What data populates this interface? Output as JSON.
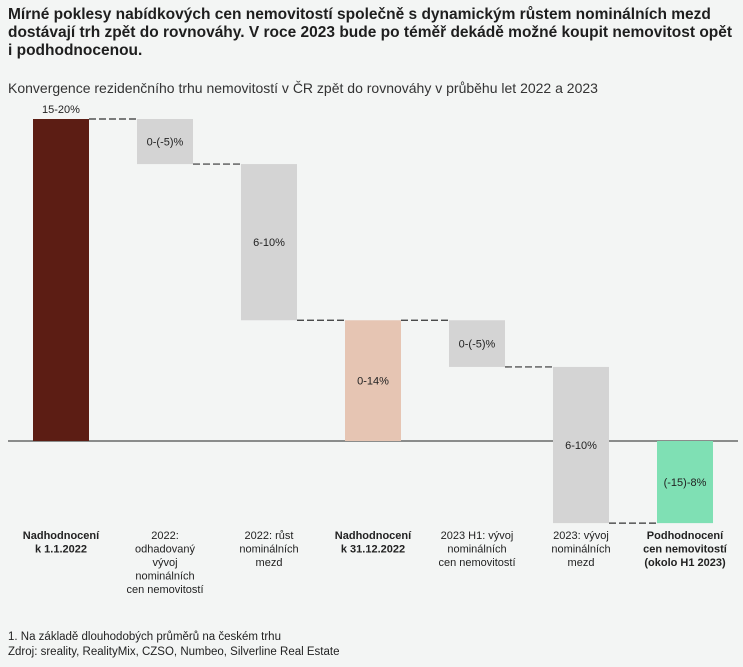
{
  "header": {
    "headline": "Mírné poklesy nabídkových cen nemovitostí společně s dynamickým růstem nominálních mezd dostávají trh zpět do rovnováhy. V roce 2023 bude po téměř dekádě možné koupit nemovitost opět i podhodnocenou.",
    "subtitle": "Konvergence rezidenčního trhu nemovitostí v ČR zpět do rovnováhy v průběhu let 2022 a 2023"
  },
  "chart_data": {
    "type": "bar",
    "subtype": "waterfall",
    "title": "Konvergence rezidenčního trhu nemovitostí v ČR zpět do rovnováhy v průběhu let 2022 a 2023",
    "categories": [
      [
        "Nadhodnocení",
        "k 1.1.2022"
      ],
      [
        "2022:",
        "odhadovaný",
        "vývoj",
        "nominálních",
        "cen nemovitostí"
      ],
      [
        "2022: růst",
        "nominálních",
        "mezd"
      ],
      [
        "Nadhodnocení",
        "k 31.12.2022"
      ],
      [
        "2023 H1: vývoj",
        "nominálních",
        "cen nemovitostí"
      ],
      [
        "2023: vývoj",
        "nominálních",
        "mezd"
      ],
      [
        "Podhodnocení",
        "cen nemovitostí",
        "(okolo H1 2023)"
      ]
    ],
    "category_bold": [
      true,
      false,
      false,
      true,
      false,
      false,
      true
    ],
    "bars": [
      {
        "kind": "total",
        "start": 0,
        "end": 20,
        "label": "15-20%",
        "color": "#5c1d14",
        "label_pos": "above"
      },
      {
        "kind": "step",
        "start": 20,
        "end": 17.2,
        "label": "0-(-5)%",
        "color": "#d4d4d4",
        "label_pos": "inside"
      },
      {
        "kind": "step",
        "start": 17.2,
        "end": 7.5,
        "label": "6-10%",
        "color": "#d4d4d4",
        "label_pos": "inside"
      },
      {
        "kind": "total",
        "start": 0,
        "end": 7.5,
        "label": "0-14%",
        "color": "#e6c5b3",
        "label_pos": "inside"
      },
      {
        "kind": "step",
        "start": 7.5,
        "end": 4.6,
        "label": "0-(-5)%",
        "color": "#d4d4d4",
        "label_pos": "inside"
      },
      {
        "kind": "step",
        "start": 4.6,
        "end": -5.1,
        "label": "6-10%",
        "color": "#d4d4d4",
        "label_pos": "inside"
      },
      {
        "kind": "total",
        "start": 0,
        "end": -5.1,
        "label": "(-15)-8%",
        "color": "#7fe0b4",
        "label_pos": "inside"
      }
    ],
    "ylim": [
      -5.1,
      20
    ],
    "zero_line": true,
    "connectors": "dashed",
    "grid": false,
    "legend": "none"
  },
  "footnotes": {
    "note1": "1. Na základě dlouhodobých průměrů na českém trhu",
    "note2": "Zdroj: sreality, RealityMix, CZSO, Numbeo, Silverline Real Estate"
  }
}
